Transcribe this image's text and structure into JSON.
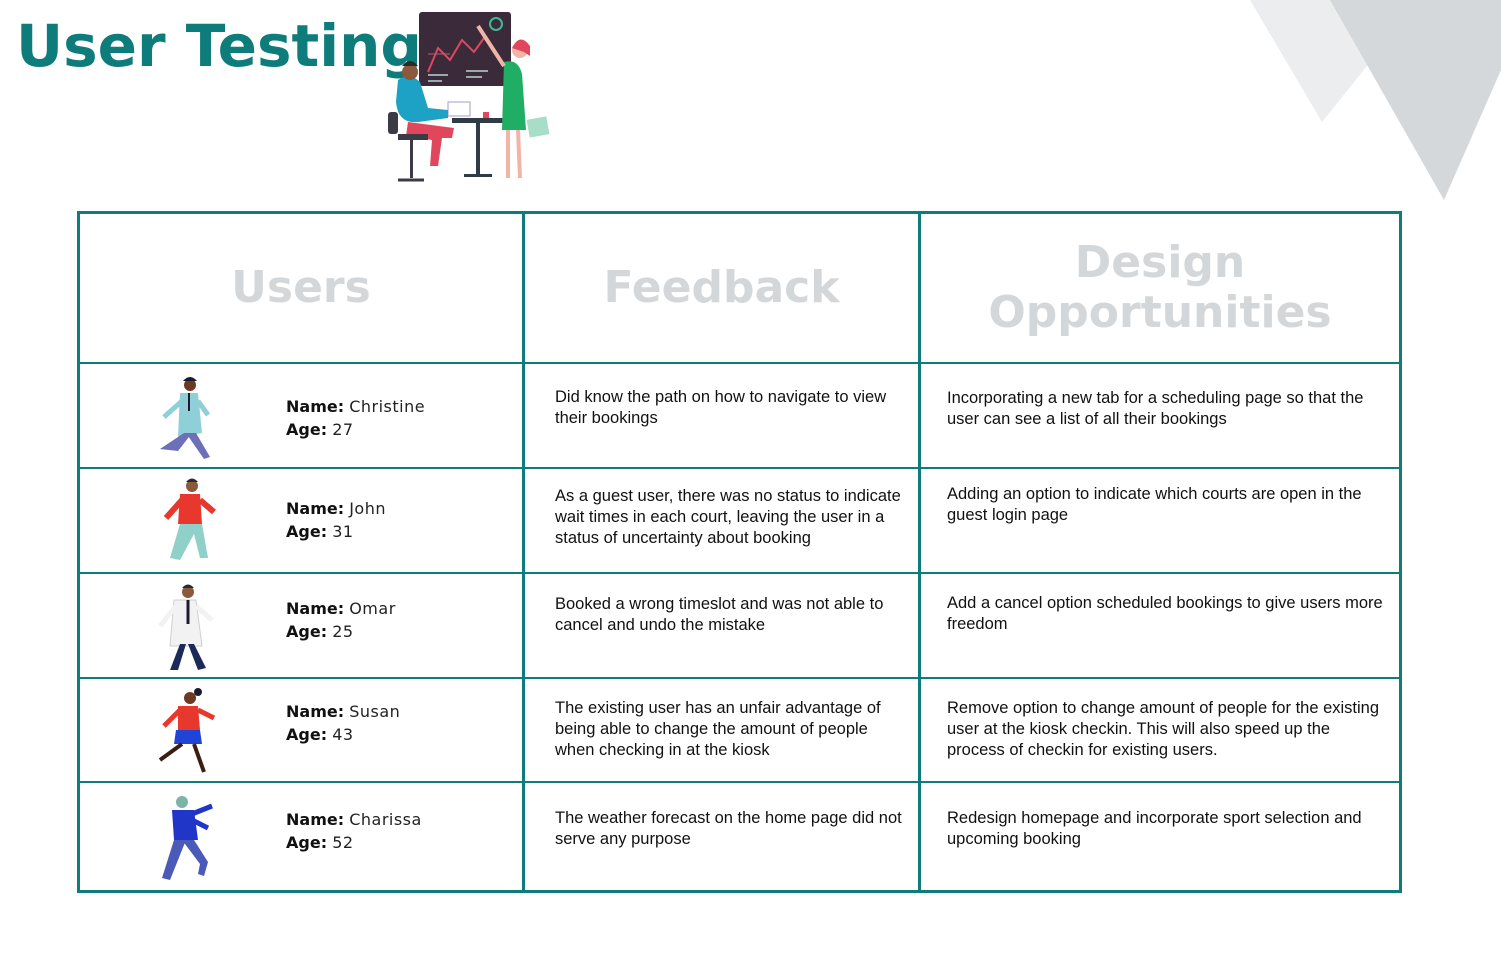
{
  "page": {
    "title": "User Testing"
  },
  "colors": {
    "accent": "#0e7c7b",
    "header_text": "#d4d7d9",
    "corner_shape": "#d9dcde"
  },
  "table": {
    "headers": {
      "users": "Users",
      "feedback": "Feedback",
      "design_line1": "Design",
      "design_line2": "Opportunities"
    },
    "name_label": "Name:",
    "age_label": "Age:",
    "rows": [
      {
        "name": "Christine",
        "age": "27",
        "feedback": "Did know the path on how to navigate to view their bookings",
        "opportunity": "Incorporating a new tab for a scheduling page so that the user can see a list of all their bookings"
      },
      {
        "name": "John",
        "age": "31",
        "feedback": "As a guest user, there was no status to indicate wait times in each court, leaving the user in a status of uncertainty about booking",
        "opportunity": "Adding an option to indicate which courts are open in the guest login page"
      },
      {
        "name": "Omar",
        "age": "25",
        "feedback": "Booked a wrong timeslot and was not able to cancel and undo the mistake",
        "opportunity": "Add a cancel option scheduled bookings to give users more freedom"
      },
      {
        "name": "Susan",
        "age": "43",
        "feedback": "The existing user has an unfair advantage of being able to change the amount of people when checking in at the kiosk",
        "opportunity": "Remove option to change amount of people for the existing user at the kiosk checkin. This will also speed up the process of checkin for existing users."
      },
      {
        "name": "Charissa",
        "age": "52",
        "feedback": "The weather forecast on the home page did not serve any purpose",
        "opportunity": "Redesign homepage and incorporate sport selection and upcoming booking"
      }
    ]
  }
}
